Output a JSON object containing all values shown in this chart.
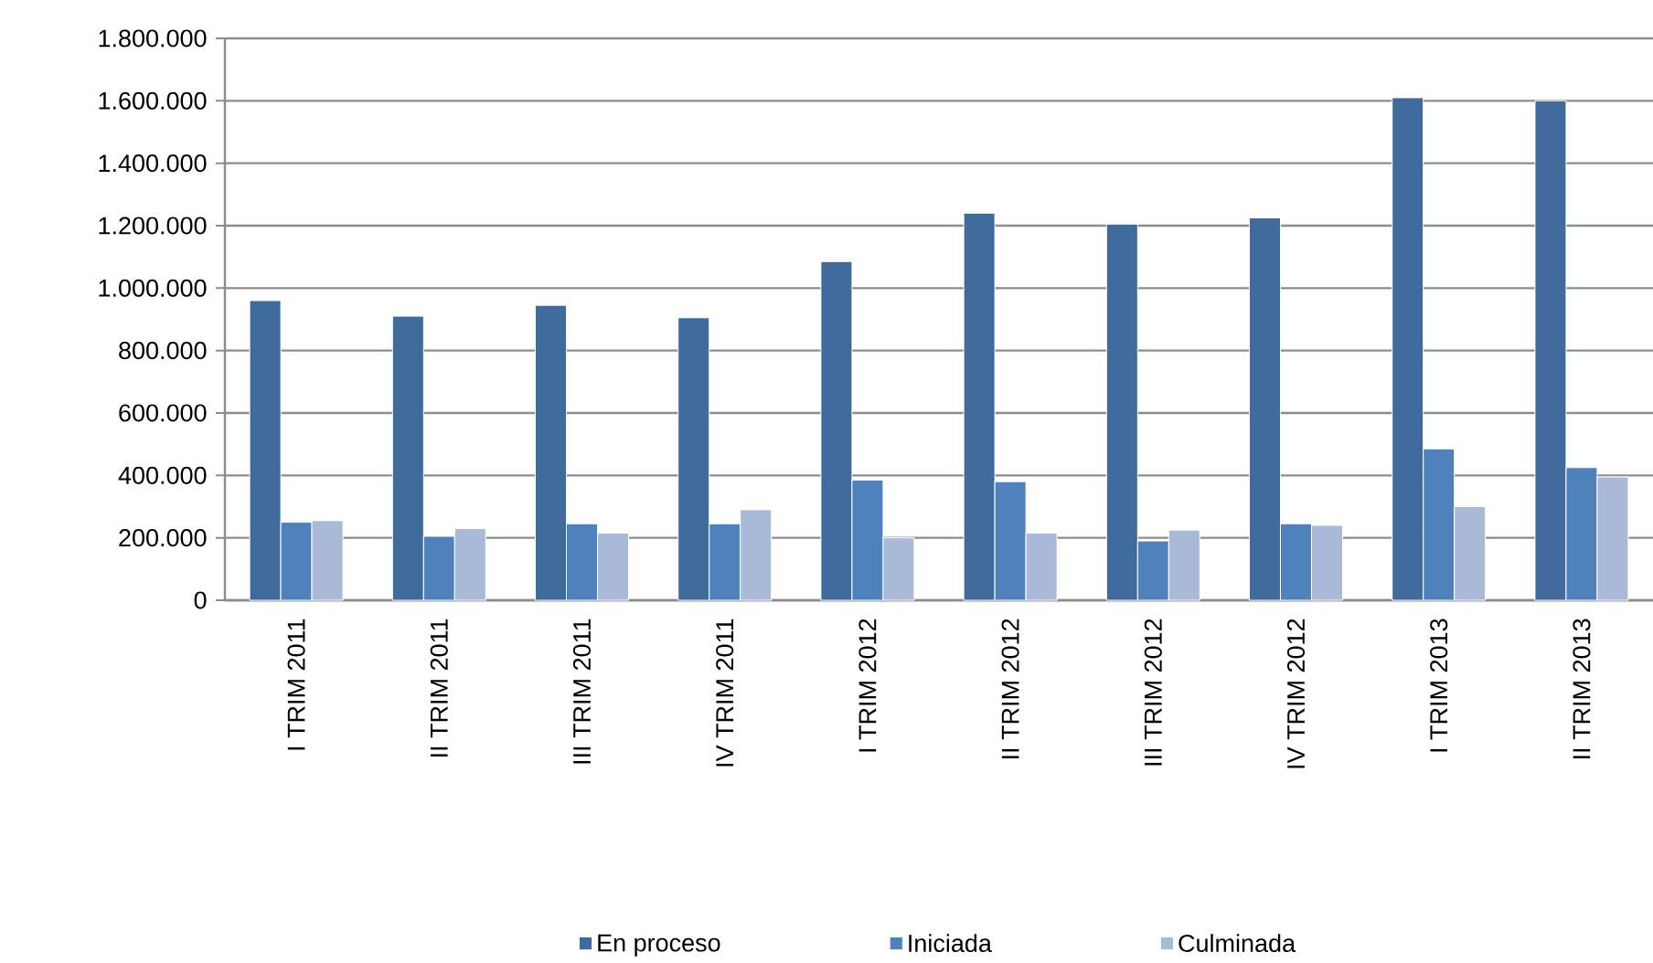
{
  "chart_data": {
    "type": "bar",
    "categories": [
      "I TRIM 2011",
      "II TRIM 2011",
      "III TRIM 2011",
      "IV TRIM 2011",
      "I TRIM 2012",
      "II TRIM 2012",
      "III TRIM 2012",
      "IV TRIM 2012",
      "I TRIM 2013",
      "II TRIM 2013"
    ],
    "series": [
      {
        "name": "En proceso",
        "color": "#3f6a9c",
        "values": [
          960000,
          910000,
          945000,
          905000,
          1085000,
          1240000,
          1205000,
          1225000,
          1610000,
          1600000
        ]
      },
      {
        "name": "Iniciada",
        "color": "#4f81bd",
        "values": [
          250000,
          205000,
          245000,
          245000,
          385000,
          380000,
          190000,
          245000,
          485000,
          425000
        ]
      },
      {
        "name": "Culminada",
        "color": "#a9b9d8",
        "values": [
          255000,
          230000,
          215000,
          290000,
          200000,
          215000,
          225000,
          240000,
          300000,
          395000
        ]
      }
    ],
    "ylim": [
      0,
      1800000
    ],
    "yticks": [
      {
        "value": 0,
        "label": "0"
      },
      {
        "value": 200000,
        "label": "200.000"
      },
      {
        "value": 400000,
        "label": "400.000"
      },
      {
        "value": 600000,
        "label": "600.000"
      },
      {
        "value": 800000,
        "label": "800.000"
      },
      {
        "value": 1000000,
        "label": "1.000.000"
      },
      {
        "value": 1200000,
        "label": "1.200.000"
      },
      {
        "value": 1400000,
        "label": "1.400.000"
      },
      {
        "value": 1600000,
        "label": "1.600.000"
      },
      {
        "value": 1800000,
        "label": "1.800.000"
      }
    ],
    "grid": "y",
    "legend": "bottom"
  }
}
